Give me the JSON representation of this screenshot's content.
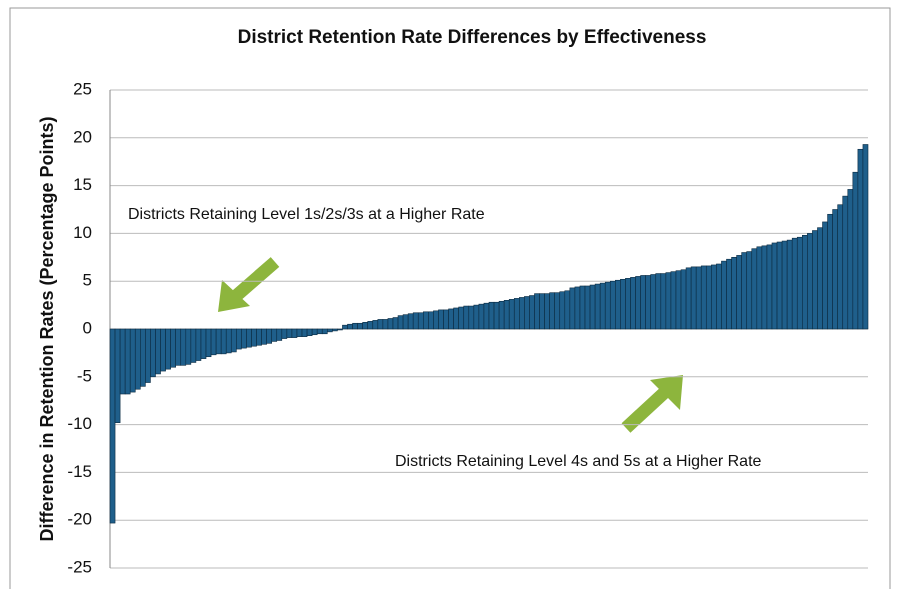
{
  "chart_data": {
    "type": "bar",
    "title": "District Retention Rate Differences by Effectiveness",
    "y_label": "Difference in Retention Rates (Percentage Points)",
    "annotations": [
      "Districts Retaining Level 1s/2s/3s at a Higher Rate",
      "Districts Retaining Level 4s and 5s at a Higher Rate"
    ],
    "categories": [
      null,
      null,
      null,
      null,
      null,
      null,
      null,
      null,
      null,
      null,
      null,
      null,
      null,
      null,
      null,
      null,
      null,
      null,
      null,
      null,
      null,
      null,
      null,
      null,
      null,
      null,
      null,
      null,
      null,
      null,
      null,
      null,
      null,
      null,
      null,
      null,
      null,
      null,
      null,
      null,
      null,
      null,
      null,
      null,
      null,
      null,
      null,
      null,
      null,
      null,
      null,
      null,
      null,
      null,
      null,
      null,
      null,
      null,
      null,
      null,
      null,
      null,
      null,
      null,
      null,
      null,
      null,
      null,
      null,
      null,
      null,
      null,
      null,
      null,
      null,
      null,
      null,
      null,
      null,
      null,
      null,
      null,
      null,
      null,
      null,
      null,
      null,
      null,
      null,
      null,
      null,
      null,
      null,
      null,
      null,
      null,
      null,
      null,
      null,
      null,
      null,
      null,
      null,
      null,
      null,
      null,
      null,
      null,
      null,
      null,
      null,
      null,
      null,
      null,
      null,
      null,
      null,
      null,
      null,
      null,
      null,
      null,
      null,
      null,
      null,
      null,
      null,
      null,
      null,
      null,
      null,
      null,
      null,
      null,
      null,
      null,
      null,
      null,
      null,
      null,
      null,
      null,
      null,
      null,
      null,
      null,
      null,
      null,
      null,
      null
    ],
    "values": [
      -20.3,
      -9.8,
      -6.8,
      -6.8,
      -6.6,
      -6.3,
      -6.0,
      -5.6,
      -5.0,
      -4.7,
      -4.4,
      -4.2,
      -4.0,
      -3.8,
      -3.8,
      -3.7,
      -3.5,
      -3.3,
      -3.1,
      -2.9,
      -2.7,
      -2.6,
      -2.6,
      -2.5,
      -2.4,
      -2.1,
      -2.0,
      -1.9,
      -1.8,
      -1.7,
      -1.6,
      -1.5,
      -1.3,
      -1.2,
      -1.0,
      -0.9,
      -0.9,
      -0.8,
      -0.8,
      -0.7,
      -0.6,
      -0.5,
      -0.5,
      -0.3,
      -0.2,
      -0.1,
      0.4,
      0.5,
      0.6,
      0.6,
      0.7,
      0.8,
      0.9,
      1.0,
      1.0,
      1.1,
      1.2,
      1.4,
      1.5,
      1.6,
      1.7,
      1.7,
      1.8,
      1.8,
      1.9,
      2.0,
      2.0,
      2.1,
      2.2,
      2.3,
      2.4,
      2.4,
      2.5,
      2.6,
      2.7,
      2.8,
      2.8,
      2.9,
      3.0,
      3.1,
      3.2,
      3.3,
      3.4,
      3.5,
      3.7,
      3.7,
      3.7,
      3.8,
      3.8,
      3.9,
      4.0,
      4.3,
      4.4,
      4.5,
      4.5,
      4.6,
      4.7,
      4.8,
      4.9,
      5.0,
      5.1,
      5.2,
      5.3,
      5.4,
      5.5,
      5.6,
      5.6,
      5.7,
      5.8,
      5.8,
      5.9,
      6.0,
      6.1,
      6.2,
      6.4,
      6.5,
      6.5,
      6.6,
      6.6,
      6.7,
      6.8,
      7.1,
      7.3,
      7.5,
      7.7,
      8.0,
      8.1,
      8.4,
      8.6,
      8.7,
      8.8,
      9.0,
      9.1,
      9.2,
      9.3,
      9.5,
      9.6,
      9.8,
      10.0,
      10.3,
      10.6,
      11.2,
      12.0,
      12.5,
      13.0,
      13.9,
      14.6,
      16.4,
      18.8,
      19.3
    ],
    "color": "#1f5f8b",
    "ylim": [
      -25,
      25
    ],
    "yticks": [
      -25,
      -20,
      -15,
      -10,
      -5,
      0,
      5,
      10,
      15,
      20,
      25
    ],
    "grid": true
  }
}
